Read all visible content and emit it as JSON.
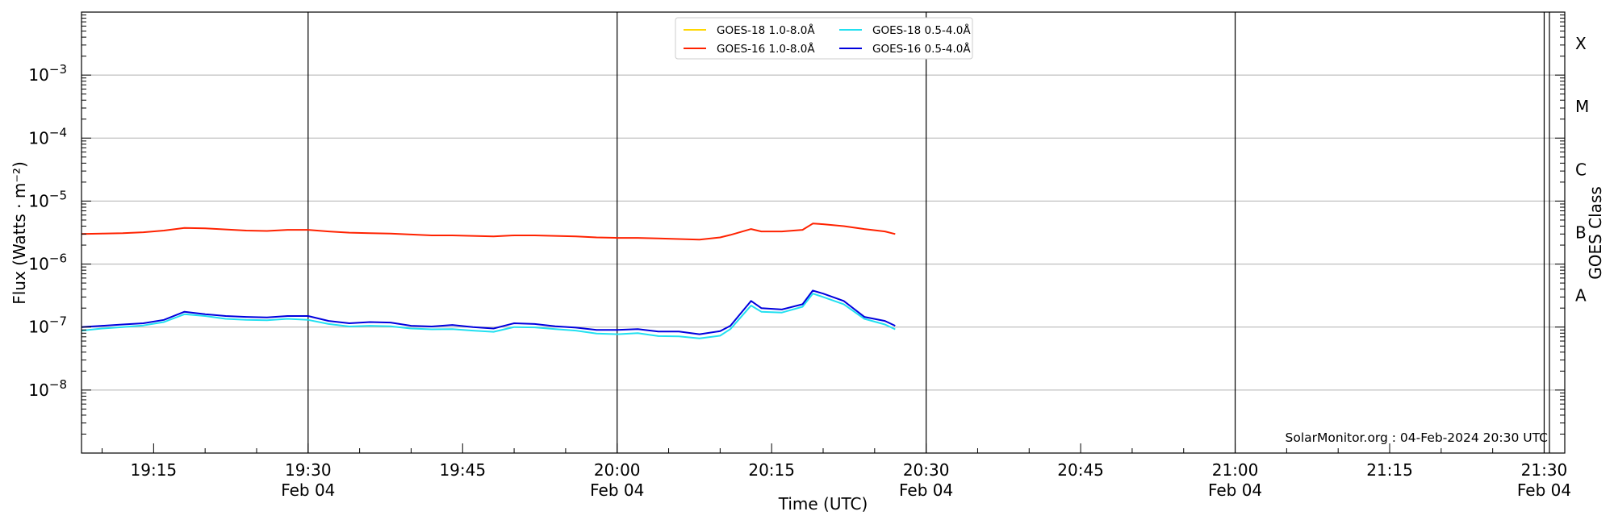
{
  "chart_data": {
    "type": "line",
    "credit": "SolarMonitor.org : 04-Feb-2024 20:30 UTC",
    "xlabel": "Time (UTC)",
    "ylabel": "Flux (Watts · m⁻²)",
    "y2label": "GOES Class",
    "y_scale": "log",
    "ylim": [
      1e-09,
      0.01
    ],
    "xlim": [
      "19:08",
      "21:32"
    ],
    "grid": "horizontal at decades; vertical lines every 30 minutes",
    "legend_position": "top-center",
    "x_ticks": [
      {
        "time": "19:15",
        "label": "19:15",
        "sub": ""
      },
      {
        "time": "19:30",
        "label": "19:30",
        "sub": "Feb 04"
      },
      {
        "time": "19:45",
        "label": "19:45",
        "sub": ""
      },
      {
        "time": "20:00",
        "label": "20:00",
        "sub": "Feb 04"
      },
      {
        "time": "20:15",
        "label": "20:15",
        "sub": ""
      },
      {
        "time": "20:30",
        "label": "20:30",
        "sub": "Feb 04"
      },
      {
        "time": "20:45",
        "label": "20:45",
        "sub": ""
      },
      {
        "time": "21:00",
        "label": "21:00",
        "sub": "Feb 04"
      },
      {
        "time": "21:15",
        "label": "21:15",
        "sub": ""
      },
      {
        "time": "21:30",
        "label": "21:30",
        "sub": "Feb 04"
      }
    ],
    "y_ticks": [
      {
        "value": 1e-08,
        "base": "10",
        "exp": "−8"
      },
      {
        "value": 1e-07,
        "base": "10",
        "exp": "−7"
      },
      {
        "value": 1e-06,
        "base": "10",
        "exp": "−6"
      },
      {
        "value": 1e-05,
        "base": "10",
        "exp": "−5"
      },
      {
        "value": 0.0001,
        "base": "10",
        "exp": "−4"
      },
      {
        "value": 0.001,
        "base": "10",
        "exp": "−3"
      }
    ],
    "class_labels": [
      {
        "label": "A",
        "value": 1e-07
      },
      {
        "label": "B",
        "value": 1e-06
      },
      {
        "label": "C",
        "value": 1e-05
      },
      {
        "label": "M",
        "value": 0.0001
      },
      {
        "label": "X",
        "value": 0.001
      }
    ],
    "series": [
      {
        "name": "GOES-18 1.0-8.0Å",
        "color": "#ffd700",
        "legend_only": true,
        "x": [],
        "y": []
      },
      {
        "name": "GOES-16 1.0-8.0Å",
        "color": "#ff2200",
        "x": [
          "19:08",
          "19:10",
          "19:12",
          "19:14",
          "19:16",
          "19:18",
          "19:20",
          "19:22",
          "19:24",
          "19:26",
          "19:28",
          "19:30",
          "19:32",
          "19:34",
          "19:36",
          "19:38",
          "19:40",
          "19:42",
          "19:44",
          "19:46",
          "19:48",
          "19:50",
          "19:52",
          "19:54",
          "19:56",
          "19:58",
          "20:00",
          "20:02",
          "20:04",
          "20:06",
          "20:08",
          "20:10",
          "20:11",
          "20:13",
          "20:14",
          "20:16",
          "20:18",
          "20:19",
          "20:20",
          "20:22",
          "20:24",
          "20:26",
          "20:27"
        ],
        "y": [
          3e-06,
          3.05e-06,
          3.1e-06,
          3.2e-06,
          3.4e-06,
          3.75e-06,
          3.7e-06,
          3.55e-06,
          3.4e-06,
          3.35e-06,
          3.5e-06,
          3.5e-06,
          3.3e-06,
          3.15e-06,
          3.1e-06,
          3.05e-06,
          2.95e-06,
          2.85e-06,
          2.85e-06,
          2.8e-06,
          2.75e-06,
          2.85e-06,
          2.85e-06,
          2.8e-06,
          2.75e-06,
          2.65e-06,
          2.6e-06,
          2.6e-06,
          2.55e-06,
          2.5e-06,
          2.45e-06,
          2.65e-06,
          2.9e-06,
          3.6e-06,
          3.3e-06,
          3.3e-06,
          3.5e-06,
          4.4e-06,
          4.3e-06,
          4e-06,
          3.6e-06,
          3.3e-06,
          3e-06
        ]
      },
      {
        "name": "GOES-18 0.5-4.0Å",
        "color": "#22e0f0",
        "x": [
          "19:08",
          "19:10",
          "19:12",
          "19:14",
          "19:16",
          "19:18",
          "19:20",
          "19:22",
          "19:24",
          "19:26",
          "19:28",
          "19:30",
          "19:32",
          "19:34",
          "19:36",
          "19:38",
          "19:40",
          "19:42",
          "19:44",
          "19:46",
          "19:48",
          "19:50",
          "19:52",
          "19:54",
          "19:56",
          "19:58",
          "20:00",
          "20:02",
          "20:04",
          "20:06",
          "20:08",
          "20:10",
          "20:11",
          "20:13",
          "20:14",
          "20:16",
          "20:18",
          "20:19",
          "20:20",
          "20:22",
          "20:24",
          "20:26",
          "20:27"
        ],
        "y": [
          8.8e-08,
          9.5e-08,
          1e-07,
          1.06e-07,
          1.2e-07,
          1.6e-07,
          1.5e-07,
          1.35e-07,
          1.3e-07,
          1.28e-07,
          1.35e-07,
          1.3e-07,
          1.12e-07,
          1.02e-07,
          1.05e-07,
          1.03e-07,
          9.5e-08,
          9.2e-08,
          9.3e-08,
          8.8e-08,
          8.4e-08,
          1e-07,
          9.9e-08,
          9.3e-08,
          8.8e-08,
          7.9e-08,
          7.7e-08,
          8e-08,
          7.2e-08,
          7.1e-08,
          6.6e-08,
          7.3e-08,
          9.3e-08,
          2.2e-07,
          1.75e-07,
          1.7e-07,
          2.1e-07,
          3.4e-07,
          3e-07,
          2.3e-07,
          1.35e-07,
          1.1e-07,
          9.2e-08
        ]
      },
      {
        "name": "GOES-16 0.5-4.0Å",
        "color": "#0000dd",
        "x": [
          "19:08",
          "19:10",
          "19:12",
          "19:14",
          "19:16",
          "19:18",
          "19:20",
          "19:22",
          "19:24",
          "19:26",
          "19:28",
          "19:30",
          "19:32",
          "19:34",
          "19:36",
          "19:38",
          "19:40",
          "19:42",
          "19:44",
          "19:46",
          "19:48",
          "19:50",
          "19:52",
          "19:54",
          "19:56",
          "19:58",
          "20:00",
          "20:02",
          "20:04",
          "20:06",
          "20:08",
          "20:10",
          "20:11",
          "20:13",
          "20:14",
          "20:16",
          "20:18",
          "20:19",
          "20:20",
          "20:22",
          "20:24",
          "20:26",
          "20:27"
        ],
        "y": [
          1e-07,
          1.05e-07,
          1.1e-07,
          1.15e-07,
          1.3e-07,
          1.75e-07,
          1.6e-07,
          1.5e-07,
          1.45e-07,
          1.42e-07,
          1.5e-07,
          1.5e-07,
          1.25e-07,
          1.15e-07,
          1.2e-07,
          1.18e-07,
          1.05e-07,
          1.02e-07,
          1.08e-07,
          1e-07,
          9.5e-08,
          1.15e-07,
          1.12e-07,
          1.03e-07,
          9.8e-08,
          9e-08,
          9e-08,
          9.3e-08,
          8.5e-08,
          8.5e-08,
          7.7e-08,
          8.6e-08,
          1.05e-07,
          2.6e-07,
          2e-07,
          1.9e-07,
          2.3e-07,
          3.8e-07,
          3.4e-07,
          2.6e-07,
          1.45e-07,
          1.25e-07,
          1.05e-07
        ]
      }
    ]
  }
}
